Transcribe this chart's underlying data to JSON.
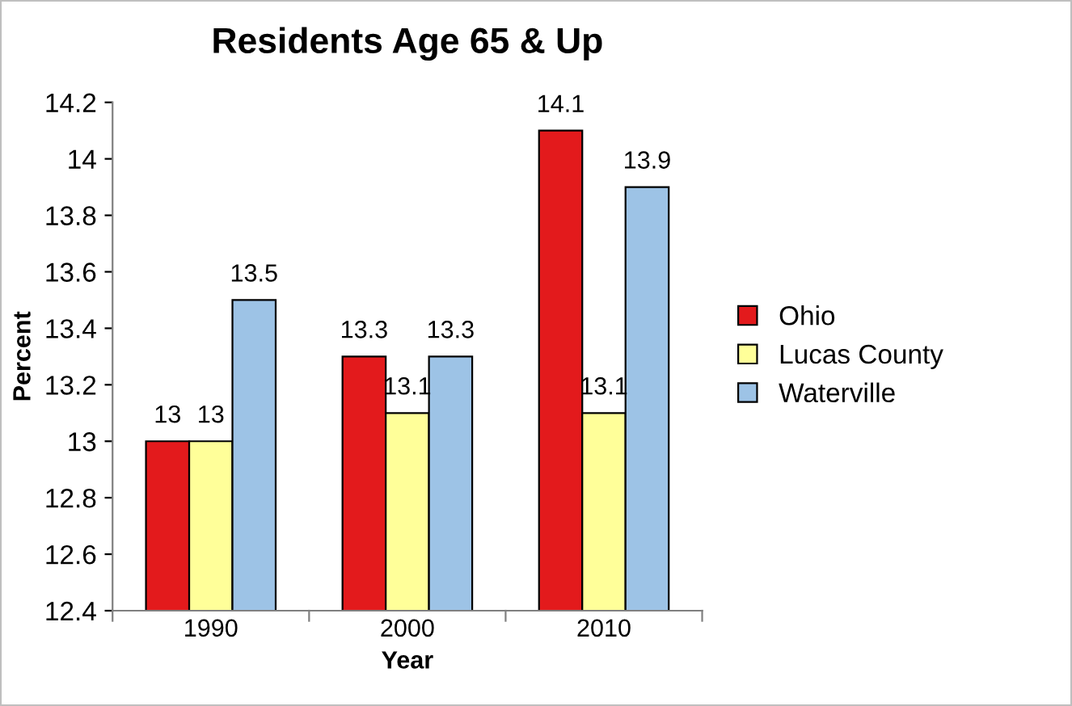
{
  "chart_data": {
    "type": "bar",
    "title": "Residents Age 65 & Up",
    "xlabel": "Year",
    "ylabel": "Percent",
    "categories": [
      "1990",
      "2000",
      "2010"
    ],
    "series": [
      {
        "name": "Ohio",
        "color": "#e31a1c",
        "values": [
          13,
          13.3,
          14.1
        ]
      },
      {
        "name": "Lucas County",
        "color": "#ffff99",
        "values": [
          13,
          13.1,
          13.1
        ]
      },
      {
        "name": "Waterville",
        "color": "#9dc3e6",
        "values": [
          13.5,
          13.3,
          13.9
        ]
      }
    ],
    "ylim": [
      12.4,
      14.2
    ],
    "yticks": [
      12.4,
      12.6,
      12.8,
      13,
      13.2,
      13.4,
      13.6,
      13.8,
      14,
      14.2
    ],
    "grid": false,
    "legend": "right",
    "data_labels": true
  }
}
